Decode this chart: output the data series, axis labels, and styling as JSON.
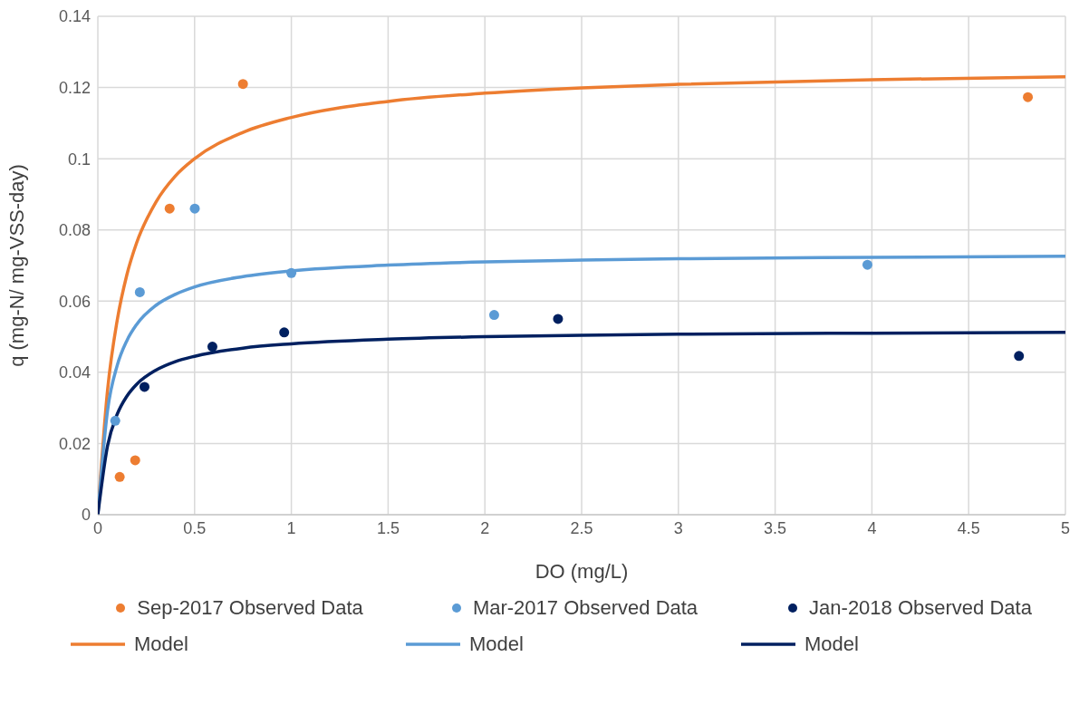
{
  "chart_data": {
    "type": "scatter",
    "xlabel": "DO (mg/L)",
    "ylabel": "q (mg-N/ mg-VSS-day)",
    "xlim": [
      0,
      5
    ],
    "xticks": [
      0,
      0.5,
      1,
      1.5,
      2,
      2.5,
      3,
      3.5,
      4,
      4.5,
      5
    ],
    "ylim": [
      0,
      0.14
    ],
    "yticks": [
      0,
      0.02,
      0.04,
      0.06,
      0.08,
      0.1,
      0.12,
      0.14
    ],
    "grid": true,
    "legend": "bottom",
    "line_style": "solid",
    "series": [
      {
        "name": "Sep-2017 Observed Data",
        "marker": "circle",
        "color": "#ed7d31",
        "x": [
          0.113,
          0.193,
          0.371,
          0.75,
          4.806
        ],
        "values": [
          0.0106,
          0.0153,
          0.086,
          0.121,
          0.1173
        ]
      },
      {
        "name": "Mar-2017 Observed Data",
        "marker": "circle",
        "color": "#5b9bd5",
        "x": [
          0.09,
          0.217,
          0.501,
          1.0,
          2.048,
          3.977
        ],
        "values": [
          0.0264,
          0.0625,
          0.086,
          0.0679,
          0.0561,
          0.0702
        ]
      },
      {
        "name": "Jan-2018 Observed Data",
        "marker": "circle",
        "color": "#002060",
        "x": [
          0.241,
          0.592,
          0.963,
          2.378,
          4.76
        ],
        "values": [
          0.0359,
          0.0472,
          0.0512,
          0.055,
          0.0446
        ]
      },
      {
        "name": "Model",
        "type": "line",
        "marker": "none",
        "color": "#ed7d31",
        "x": [
          0,
          0.05,
          0.1,
          0.15,
          0.2,
          0.3,
          0.4,
          0.5,
          0.75,
          1,
          1.5,
          2,
          2.5,
          3,
          4,
          5
        ],
        "values": [
          0,
          0.0349,
          0.0546,
          0.0674,
          0.0763,
          0.0878,
          0.0951,
          0.1,
          0.1074,
          0.1116,
          0.1161,
          0.1184,
          0.1199,
          0.1209,
          0.1222,
          0.123
        ]
      },
      {
        "name": "Model",
        "type": "line",
        "marker": "none",
        "color": "#5b9bd5",
        "x": [
          0,
          0.05,
          0.1,
          0.15,
          0.2,
          0.3,
          0.4,
          0.5,
          0.75,
          1,
          1.5,
          2,
          2.5,
          3,
          4,
          5
        ],
        "values": [
          0,
          0.0292,
          0.0419,
          0.0489,
          0.0534,
          0.0588,
          0.0619,
          0.064,
          0.0669,
          0.0685,
          0.0701,
          0.071,
          0.0715,
          0.0719,
          0.0723,
          0.0726
        ]
      },
      {
        "name": "Model",
        "type": "line",
        "marker": "none",
        "color": "#002060",
        "x": [
          0,
          0.05,
          0.1,
          0.15,
          0.2,
          0.3,
          0.4,
          0.5,
          0.75,
          1,
          1.5,
          2,
          2.5,
          3,
          4,
          5
        ],
        "values": [
          0,
          0.0193,
          0.0282,
          0.0333,
          0.0366,
          0.0406,
          0.043,
          0.0445,
          0.0468,
          0.048,
          0.0493,
          0.05,
          0.0504,
          0.0507,
          0.051,
          0.0512
        ]
      }
    ]
  }
}
